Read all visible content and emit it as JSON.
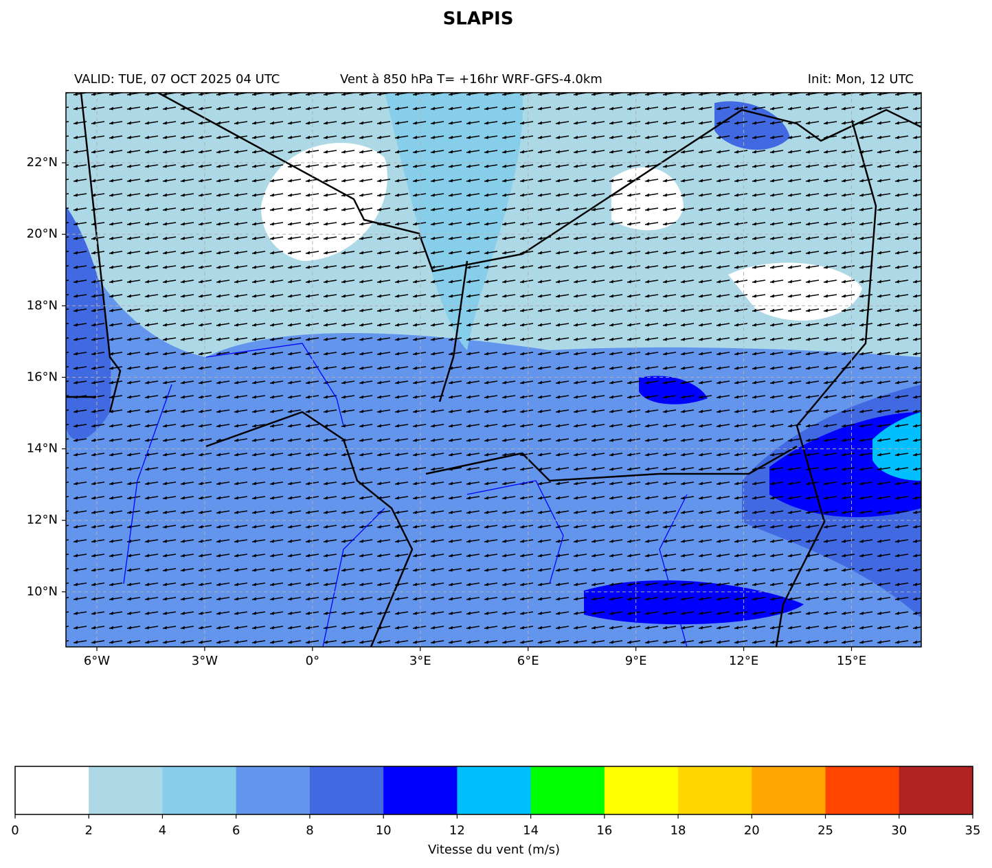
{
  "title": "SLAPIS",
  "header": {
    "valid": "VALID: TUE, 07 OCT 2025 04 UTC",
    "center": "Vent à 850 hPa T= +16hr  WRF-GFS-4.0km",
    "init": "Init: Mon, 12 UTC"
  },
  "map": {
    "lon_range": [
      -6.86,
      16.94
    ],
    "lat_range": [
      8.46,
      23.96
    ],
    "lon_ticks": [
      {
        "value": -6,
        "label": "6°W"
      },
      {
        "value": -3,
        "label": "3°W"
      },
      {
        "value": 0,
        "label": "0°"
      },
      {
        "value": 3,
        "label": "3°E"
      },
      {
        "value": 6,
        "label": "6°E"
      },
      {
        "value": 9,
        "label": "9°E"
      },
      {
        "value": 12,
        "label": "12°E"
      },
      {
        "value": 15,
        "label": "15°E"
      }
    ],
    "lat_ticks": [
      {
        "value": 10,
        "label": "10°N"
      },
      {
        "value": 12,
        "label": "12°N"
      },
      {
        "value": 14,
        "label": "14°N"
      },
      {
        "value": 16,
        "label": "16°N"
      },
      {
        "value": 18,
        "label": "18°N"
      },
      {
        "value": 20,
        "label": "20°N"
      },
      {
        "value": 22,
        "label": "22°N"
      }
    ],
    "grid": true
  },
  "colorbar": {
    "label": "Vitesse du vent (m/s)",
    "levels": [
      0,
      2,
      4,
      6,
      8,
      10,
      12,
      14,
      16,
      18,
      20,
      25,
      30,
      35
    ],
    "colors": [
      "#ffffff",
      "#add8e6",
      "#87ceeb",
      "#6495ed",
      "#4169e1",
      "#0000ff",
      "#00bfff",
      "#00ff00",
      "#ffff00",
      "#ffd700",
      "#ffa500",
      "#ff4500",
      "#b22222"
    ]
  }
}
